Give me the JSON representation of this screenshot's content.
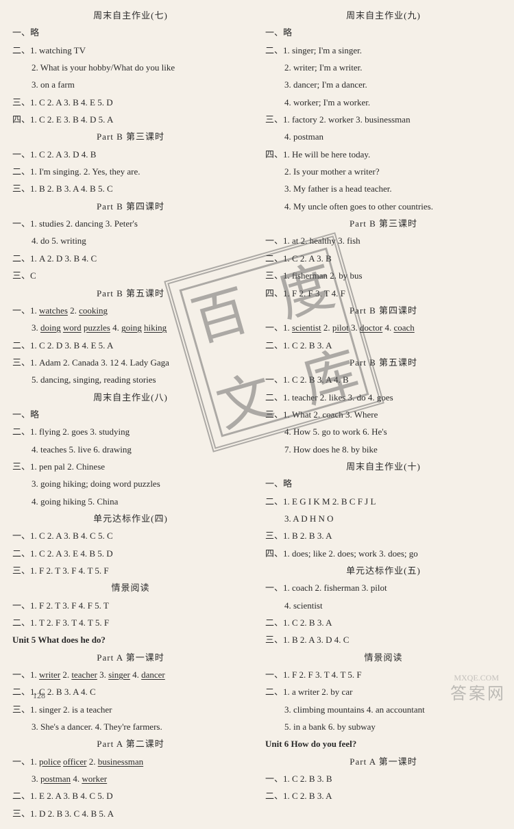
{
  "left": {
    "h1": "周末自主作业(七)",
    "l1": "一、略",
    "l2": "二、1. watching TV",
    "l3": "2. What is your hobby/What do you like",
    "l4": "3. on a farm",
    "l5": "三、1. C  2. A  3. B  4. E  5. D",
    "l6": "四、1. C  2. E  3. B  4. D  5. A",
    "h2": "Part B    第三课时",
    "l7": "一、1. C  2. A  3. D  4. B",
    "l8": "二、1. I'm singing.  2. Yes, they are.",
    "l9": "三、1. B  2. B  3. A  4. B  5. C",
    "h3": "Part B    第四课时",
    "l10": "一、1. studies  2. dancing  3. Peter's",
    "l11": "4. do  5. writing",
    "l12": "二、1. A  2. D  3. B  4. C",
    "l13": "三、C",
    "h4": "Part B    第五课时",
    "l14a": "一、1. ",
    "l14b": "watches",
    "l14c": "  2. ",
    "l14d": "cooking",
    "l15a": "3. ",
    "l15b": "doing",
    "l15c": " ",
    "l15d": "word",
    "l15e": " ",
    "l15f": "puzzles",
    "l15g": "  4. ",
    "l15h": "going",
    "l15i": " ",
    "l15j": "hiking",
    "l16": "二、1. C  2. D  3. B  4. E  5. A",
    "l17": "三、1. Adam  2. Canada  3. 12  4. Lady Gaga",
    "l18": "5. dancing, singing, reading stories",
    "h5": "周末自主作业(八)",
    "l19": "一、略",
    "l20": "二、1. flying  2. goes  3. studying",
    "l21": "4. teaches  5. live  6. drawing",
    "l22": "三、1. pen pal  2. Chinese",
    "l23": "3. going hiking; doing word puzzles",
    "l24": "4. going hiking  5. China",
    "h6": "单元达标作业(四)",
    "l25": "一、1. C  2. A  3. B  4. C  5. C",
    "l26": "二、1. C  2. A  3. E  4. B  5. D",
    "l27": "三、1. F  2. T  3. F  4. T  5. F",
    "h7": "情景阅读",
    "l28": "一、1. F  2. T  3. F  4. F  5. T",
    "l29": "二、1. T  2. F  3. T  4. T  5. F",
    "h8": "Unit 5    What does he do?",
    "h9": "Part A    第一课时",
    "l30a": "一、1. ",
    "l30b": "writer",
    "l30c": "  2. ",
    "l30d": "teacher",
    "l30e": "  3. ",
    "l30f": "singer",
    "l30g": "  4. ",
    "l30h": "dancer",
    "l31": "二、1. C  2. B  3. A  4. C",
    "l32": "三、1. singer  2. is a teacher",
    "l33": "3. She's a dancer.  4. They're farmers.",
    "h10": "Part A    第二课时",
    "l34a": "一、1. ",
    "l34b": "police",
    "l34c": " ",
    "l34d": "officer",
    "l34e": "  2. ",
    "l34f": "businessman",
    "l35a": "3. ",
    "l35b": "postman",
    "l35c": "      4. ",
    "l35d": "worker",
    "l36": "二、1. E  2. A  3. B  4. C  5. D",
    "l37": "三、1. D  2. B  3. C  4. B  5. A"
  },
  "right": {
    "h1": "周末自主作业(九)",
    "r1": "一、略",
    "r2": "二、1. singer; I'm a singer.",
    "r3": "2. writer; I'm a writer.",
    "r4": "3. dancer; I'm a dancer.",
    "r5": "4. worker; I'm a worker.",
    "r6": "三、1. factory  2. worker  3. businessman",
    "r7": "4. postman",
    "r8": "四、1. He will be here today.",
    "r9": "2. Is your mother a writer?",
    "r10": "3. My father is a head teacher.",
    "r11": "4. My uncle often goes to other countries.",
    "h2": "Part B    第三课时",
    "r12": "一、1. at  2. healthy  3. fish",
    "r13": "二、1. C  2. A  3. B",
    "r14": "三、1. fisherman  2. by bus",
    "r15": "四、1. F  2. F  3. T  4. F",
    "h3": "Part B    第四课时",
    "r16a": "一、1. ",
    "r16b": "scientist",
    "r16c": "  2. ",
    "r16d": "pilot",
    "r16e": "  3. ",
    "r16f": "doctor",
    "r16g": "  4. ",
    "r16h": "coach",
    "r17": "二、1. C  2. B  3. A",
    "h4": "Part B    第五课时",
    "r18": "一、1. C  2. B  3. A  4. B",
    "r19": "二、1. teacher  2. likes  3. do  4. goes",
    "r20": "三、1. What  2. coach  3. Where",
    "r21": "4. How  5. go to work  6. He's",
    "r22": "7. How does he  8. by bike",
    "h5": "周末自主作业(十)",
    "r23": "一、略",
    "r24": "二、1. E G I K M  2. B C F J L",
    "r25": "3. A D H N O",
    "r26": "三、1. B  2. B  3. A",
    "r27": "四、1. does; like  2. does; work  3. does; go",
    "h6": "单元达标作业(五)",
    "r28": "一、1. coach  2. fisherman  3. pilot",
    "r29": "4. scientist",
    "r30": "二、1. C  2. B  3. A",
    "r31": "三、1. B  2. A  3. D  4. C",
    "h7": "情景阅读",
    "r32": "一、1. F  2. F  3. T  4. T  5. F",
    "r33": "二、1. a writer  2. by car",
    "r34": "3. climbing mountains  4. an accountant",
    "r35": "5. in a bank  6. by subway",
    "h8": "Unit 6    How do you feel?",
    "h9": "Part A    第一课时",
    "r36": "一、1. C  2. B  3. B",
    "r37": "二、1. C  2. B  3. A"
  },
  "pgnum": "128",
  "wm": "答案网",
  "wm2": "MXQE.COM"
}
